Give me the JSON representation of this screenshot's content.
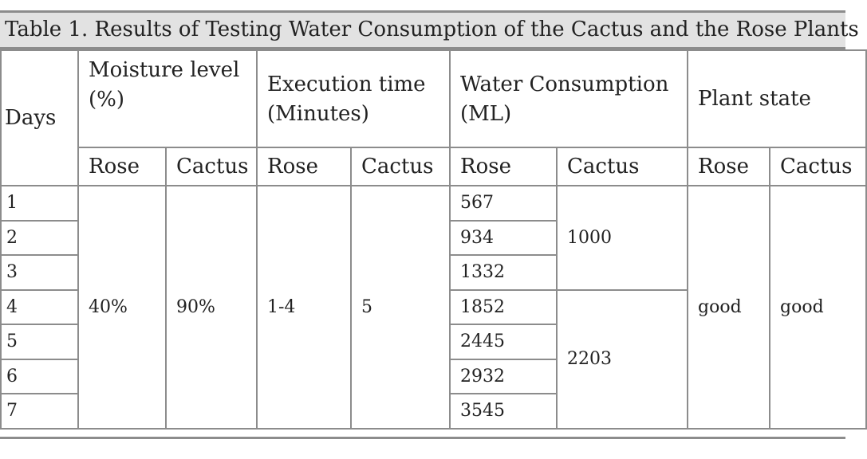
{
  "caption": "Table 1. Results of Testing Water Consumption of the Cactus and the Rose Plants",
  "headers": {
    "days": "Days",
    "moisture": "Moisture level (%)",
    "moisture_line1": "Moisture level",
    "moisture_line2": "(%)",
    "execution_line1": "Execution time",
    "execution_line2": "(Minutes)",
    "water_line1": "Water Consumption",
    "water_line2": "(ML)",
    "plant_state": "Plant state",
    "rose": "Rose",
    "cactus": "Cactus"
  },
  "days": [
    "1",
    "2",
    "3",
    "4",
    "5",
    "6",
    "7"
  ],
  "moisture": {
    "rose": "40%",
    "cactus": "90%"
  },
  "execution": {
    "rose": "1-4",
    "cactus": "5"
  },
  "water": {
    "rose": [
      "567",
      "934",
      "1332",
      "1852",
      "2445",
      "2932",
      "3545"
    ],
    "cactus": [
      "1000",
      "2203"
    ]
  },
  "plant_state": {
    "rose": "good",
    "cactus": "good"
  }
}
